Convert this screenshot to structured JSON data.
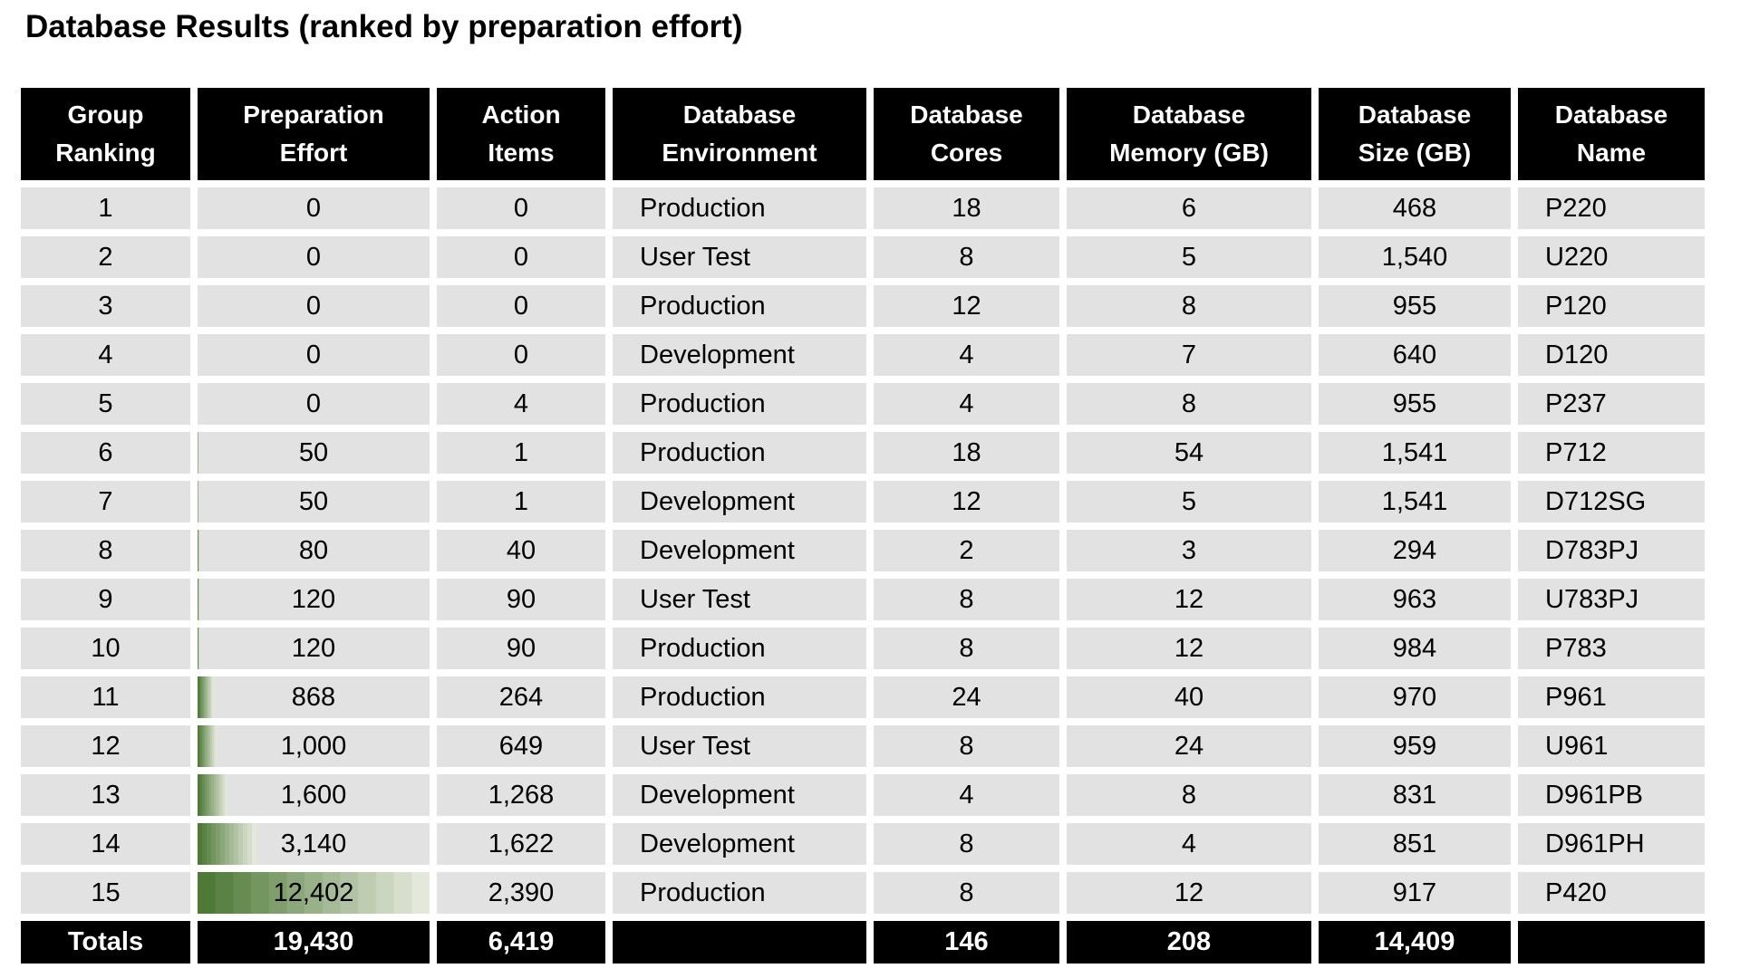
{
  "title": "Database Results (ranked by preparation effort)",
  "colors": {
    "page_bg": "#ffffff",
    "header_bg": "#000000",
    "header_text": "#ffffff",
    "cell_bg": "#e2e2e2",
    "body_text": "#000000",
    "bar_dark_green": "#4e7937",
    "bar_light_green": "#e3e8da"
  },
  "table": {
    "columns": [
      {
        "id": "ranking",
        "line1": "Group",
        "line2": "Ranking"
      },
      {
        "id": "effort",
        "line1": "Preparation",
        "line2": "Effort"
      },
      {
        "id": "items",
        "line1": "Action",
        "line2": "Items"
      },
      {
        "id": "environment",
        "line1": "Database",
        "line2": "Environment"
      },
      {
        "id": "cores",
        "line1": "Database",
        "line2": "Cores"
      },
      {
        "id": "memory",
        "line1": "Database",
        "line2": "Memory (GB)"
      },
      {
        "id": "size",
        "line1": "Database",
        "line2": "Size (GB)"
      },
      {
        "id": "name",
        "line1": "Database",
        "line2": "Name"
      }
    ],
    "max_effort": 12402,
    "bar_steps": 13,
    "rows": [
      {
        "ranking": "1",
        "effort": "0",
        "effort_value": 0,
        "items": "0",
        "environment": "Production",
        "cores": "18",
        "memory": "6",
        "size": "468",
        "name": "P220"
      },
      {
        "ranking": "2",
        "effort": "0",
        "effort_value": 0,
        "items": "0",
        "environment": "User Test",
        "cores": "8",
        "memory": "5",
        "size": "1,540",
        "name": "U220"
      },
      {
        "ranking": "3",
        "effort": "0",
        "effort_value": 0,
        "items": "0",
        "environment": "Production",
        "cores": "12",
        "memory": "8",
        "size": "955",
        "name": "P120"
      },
      {
        "ranking": "4",
        "effort": "0",
        "effort_value": 0,
        "items": "0",
        "environment": "Development",
        "cores": "4",
        "memory": "7",
        "size": "640",
        "name": "D120"
      },
      {
        "ranking": "5",
        "effort": "0",
        "effort_value": 0,
        "items": "4",
        "environment": "Production",
        "cores": "4",
        "memory": "8",
        "size": "955",
        "name": "P237"
      },
      {
        "ranking": "6",
        "effort": "50",
        "effort_value": 50,
        "items": "1",
        "environment": "Production",
        "cores": "18",
        "memory": "54",
        "size": "1,541",
        "name": "P712"
      },
      {
        "ranking": "7",
        "effort": "50",
        "effort_value": 50,
        "items": "1",
        "environment": "Development",
        "cores": "12",
        "memory": "5",
        "size": "1,541",
        "name": "D712SG"
      },
      {
        "ranking": "8",
        "effort": "80",
        "effort_value": 80,
        "items": "40",
        "environment": "Development",
        "cores": "2",
        "memory": "3",
        "size": "294",
        "name": "D783PJ"
      },
      {
        "ranking": "9",
        "effort": "120",
        "effort_value": 120,
        "items": "90",
        "environment": "User Test",
        "cores": "8",
        "memory": "12",
        "size": "963",
        "name": "U783PJ"
      },
      {
        "ranking": "10",
        "effort": "120",
        "effort_value": 120,
        "items": "90",
        "environment": "Production",
        "cores": "8",
        "memory": "12",
        "size": "984",
        "name": "P783"
      },
      {
        "ranking": "11",
        "effort": "868",
        "effort_value": 868,
        "items": "264",
        "environment": "Production",
        "cores": "24",
        "memory": "40",
        "size": "970",
        "name": "P961"
      },
      {
        "ranking": "12",
        "effort": "1,000",
        "effort_value": 1000,
        "items": "649",
        "environment": "User Test",
        "cores": "8",
        "memory": "24",
        "size": "959",
        "name": "U961"
      },
      {
        "ranking": "13",
        "effort": "1,600",
        "effort_value": 1600,
        "items": "1,268",
        "environment": "Development",
        "cores": "4",
        "memory": "8",
        "size": "831",
        "name": "D961PB"
      },
      {
        "ranking": "14",
        "effort": "3,140",
        "effort_value": 3140,
        "items": "1,622",
        "environment": "Development",
        "cores": "8",
        "memory": "4",
        "size": "851",
        "name": "D961PH"
      },
      {
        "ranking": "15",
        "effort": "12,402",
        "effort_value": 12402,
        "items": "2,390",
        "environment": "Production",
        "cores": "8",
        "memory": "12",
        "size": "917",
        "name": "P420"
      }
    ],
    "totals": {
      "ranking": "Totals",
      "effort": "19,430",
      "items": "6,419",
      "environment": "",
      "cores": "146",
      "memory": "208",
      "size": "14,409",
      "name": ""
    }
  },
  "chart_data": {
    "type": "table",
    "title": "Database Results (ranked by preparation effort)",
    "columns": [
      "Group Ranking",
      "Preparation Effort",
      "Action Items",
      "Database Environment",
      "Database Cores",
      "Database Memory (GB)",
      "Database Size (GB)",
      "Database Name"
    ],
    "rows": [
      [
        1,
        0,
        0,
        "Production",
        18,
        6,
        468,
        "P220"
      ],
      [
        2,
        0,
        0,
        "User Test",
        8,
        5,
        1540,
        "U220"
      ],
      [
        3,
        0,
        0,
        "Production",
        12,
        8,
        955,
        "P120"
      ],
      [
        4,
        0,
        0,
        "Development",
        4,
        7,
        640,
        "D120"
      ],
      [
        5,
        0,
        4,
        "Production",
        4,
        8,
        955,
        "P237"
      ],
      [
        6,
        50,
        1,
        "Production",
        18,
        54,
        1541,
        "P712"
      ],
      [
        7,
        50,
        1,
        "Development",
        12,
        5,
        1541,
        "D712SG"
      ],
      [
        8,
        80,
        40,
        "Development",
        2,
        3,
        294,
        "D783PJ"
      ],
      [
        9,
        120,
        90,
        "User Test",
        8,
        12,
        963,
        "U783PJ"
      ],
      [
        10,
        120,
        90,
        "Production",
        8,
        12,
        984,
        "P783"
      ],
      [
        11,
        868,
        264,
        "Production",
        24,
        40,
        970,
        "P961"
      ],
      [
        12,
        1000,
        649,
        "User Test",
        8,
        24,
        959,
        "U961"
      ],
      [
        13,
        1600,
        1268,
        "Development",
        4,
        8,
        831,
        "D961PB"
      ],
      [
        14,
        3140,
        1622,
        "Development",
        8,
        4,
        851,
        "D961PH"
      ],
      [
        15,
        12402,
        2390,
        "Production",
        8,
        12,
        917,
        "P420"
      ]
    ],
    "totals": [
      "Totals",
      19430,
      6419,
      null,
      146,
      208,
      14409,
      null
    ],
    "data_bars": {
      "column": "Preparation Effort",
      "max": 12402,
      "style": "stepped green gradient, dark left to light right",
      "color_dark": "#4e7937",
      "color_light": "#e3e8da"
    }
  }
}
